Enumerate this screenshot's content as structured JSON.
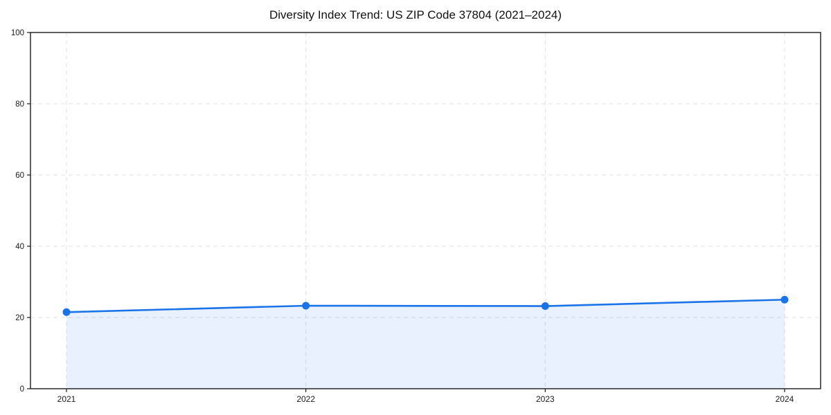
{
  "chart_data": {
    "type": "line",
    "title": "Diversity Index Trend: US ZIP Code 37804 (2021–2024)",
    "categories": [
      "2021",
      "2022",
      "2023",
      "2024"
    ],
    "x": [
      2021,
      2022,
      2023,
      2024
    ],
    "series": [
      {
        "name": "Diversity Index",
        "values": [
          21.5,
          23.3,
          23.2,
          25.0
        ]
      }
    ],
    "xlabel": "",
    "ylabel": "",
    "ylim": [
      0,
      100
    ],
    "yticks": [
      0,
      20,
      40,
      60,
      80,
      100
    ],
    "grid": true,
    "grid_style": "dashed",
    "legend_position": "none",
    "line_color": "#1a73e8",
    "marker_color": "#1a73e8",
    "fill_color": "rgba(26,115,232,0.10)",
    "grid_color": "#e0e0e0",
    "spine_color": "#1a1a1a",
    "background_color": "#ffffff"
  }
}
